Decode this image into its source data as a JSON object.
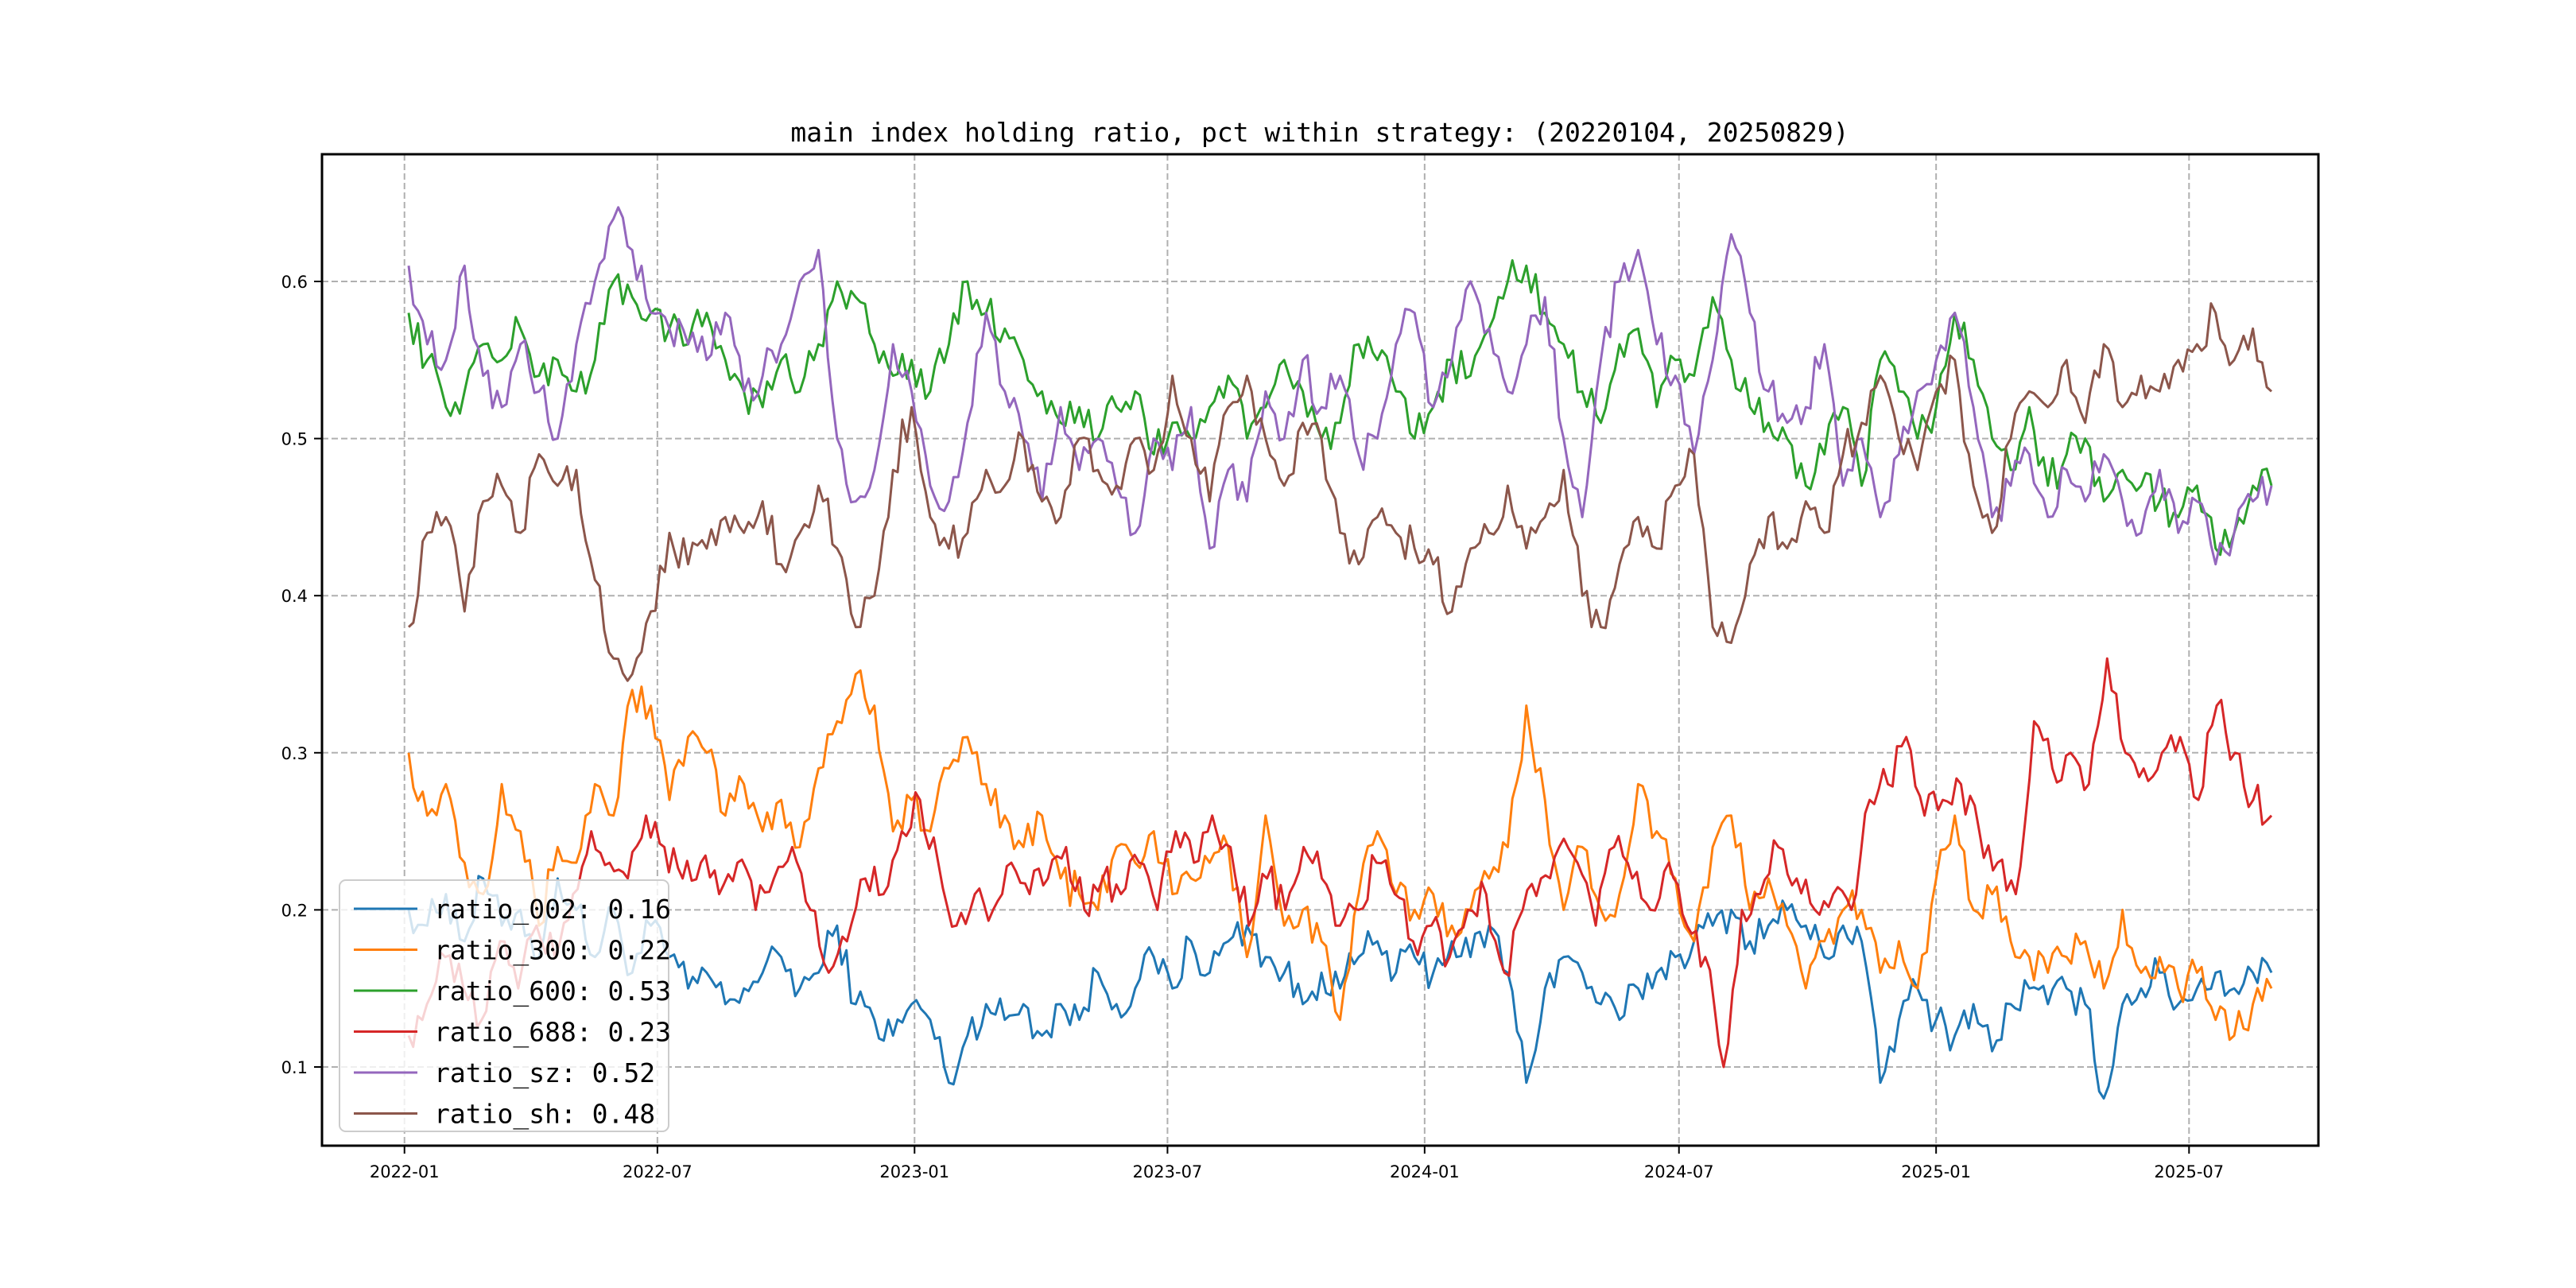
{
  "chart_data": {
    "type": "line",
    "title": "main index holding ratio, pct within strategy: (20220104, 20250829)",
    "xlabel": "",
    "ylabel": "",
    "x_start": "2022-01-04",
    "x_end": "2025-08-29",
    "xticks": [
      "2022-01",
      "2022-07",
      "2023-01",
      "2023-07",
      "2024-01",
      "2024-07",
      "2025-01",
      "2025-07"
    ],
    "yticks": [
      "0.1",
      "0.2",
      "0.3",
      "0.4",
      "0.5",
      "0.6"
    ],
    "ylim": [
      0.055,
      0.68
    ],
    "grid": true,
    "legend_position": "lower-left",
    "legend_alpha": 0.8,
    "series": [
      {
        "name": "ratio_002",
        "legend_label": "ratio_002: 0.16",
        "color": "#1f77b4",
        "values": [
          0.2,
          0.19,
          0.21,
          0.18,
          0.22,
          0.19,
          0.2,
          0.17,
          0.22,
          0.2,
          0.17,
          0.2,
          0.16,
          0.19,
          0.17,
          0.15,
          0.16,
          0.14,
          0.15,
          0.16,
          0.17,
          0.15,
          0.16,
          0.19,
          0.14,
          0.13,
          0.12,
          0.14,
          0.13,
          0.09,
          0.12,
          0.14,
          0.13,
          0.14,
          0.12,
          0.14,
          0.13,
          0.16,
          0.14,
          0.15,
          0.17,
          0.15,
          0.18,
          0.16,
          0.18,
          0.19,
          0.17,
          0.16,
          0.14,
          0.16,
          0.15,
          0.17,
          0.18,
          0.16,
          0.17,
          0.16,
          0.18,
          0.17,
          0.19,
          0.16,
          0.09,
          0.15,
          0.17,
          0.16,
          0.14,
          0.13,
          0.15,
          0.16,
          0.17,
          0.18,
          0.19,
          0.2,
          0.18,
          0.19,
          0.2,
          0.19,
          0.17,
          0.19,
          0.18,
          0.09,
          0.13,
          0.15,
          0.13,
          0.12,
          0.14,
          0.11,
          0.14,
          0.15,
          0.14,
          0.15,
          0.14,
          0.08,
          0.14,
          0.15,
          0.16,
          0.14,
          0.15,
          0.16,
          0.15,
          0.16,
          0.16
        ]
      },
      {
        "name": "ratio_300",
        "legend_label": "ratio_300: 0.22",
        "color": "#ff7f0e",
        "values": [
          0.3,
          0.26,
          0.28,
          0.23,
          0.21,
          0.28,
          0.25,
          0.19,
          0.24,
          0.23,
          0.28,
          0.26,
          0.34,
          0.33,
          0.27,
          0.31,
          0.3,
          0.26,
          0.28,
          0.25,
          0.27,
          0.24,
          0.29,
          0.32,
          0.35,
          0.33,
          0.25,
          0.27,
          0.25,
          0.29,
          0.31,
          0.28,
          0.26,
          0.24,
          0.26,
          0.22,
          0.21,
          0.2,
          0.24,
          0.23,
          0.25,
          0.21,
          0.22,
          0.23,
          0.24,
          0.17,
          0.26,
          0.19,
          0.2,
          0.18,
          0.13,
          0.21,
          0.25,
          0.21,
          0.2,
          0.21,
          0.19,
          0.2,
          0.22,
          0.24,
          0.33,
          0.27,
          0.2,
          0.24,
          0.2,
          0.21,
          0.28,
          0.25,
          0.22,
          0.18,
          0.24,
          0.26,
          0.2,
          0.22,
          0.19,
          0.15,
          0.18,
          0.2,
          0.2,
          0.16,
          0.18,
          0.15,
          0.22,
          0.26,
          0.2,
          0.21,
          0.18,
          0.17,
          0.16,
          0.17,
          0.18,
          0.15,
          0.2,
          0.16,
          0.17,
          0.15,
          0.16,
          0.13,
          0.12,
          0.14,
          0.15
        ]
      },
      {
        "name": "ratio_600",
        "legend_label": "ratio_600: 0.53",
        "color": "#2ca02c",
        "values": [
          0.58,
          0.55,
          0.52,
          0.53,
          0.56,
          0.55,
          0.57,
          0.54,
          0.55,
          0.53,
          0.55,
          0.6,
          0.59,
          0.58,
          0.57,
          0.56,
          0.58,
          0.55,
          0.53,
          0.52,
          0.55,
          0.53,
          0.56,
          0.6,
          0.59,
          0.56,
          0.54,
          0.55,
          0.53,
          0.56,
          0.6,
          0.58,
          0.57,
          0.55,
          0.53,
          0.51,
          0.52,
          0.5,
          0.52,
          0.53,
          0.49,
          0.51,
          0.5,
          0.52,
          0.54,
          0.5,
          0.52,
          0.55,
          0.53,
          0.5,
          0.51,
          0.56,
          0.55,
          0.53,
          0.5,
          0.52,
          0.55,
          0.54,
          0.57,
          0.6,
          0.61,
          0.58,
          0.56,
          0.53,
          0.51,
          0.56,
          0.57,
          0.52,
          0.55,
          0.54,
          0.59,
          0.55,
          0.52,
          0.51,
          0.5,
          0.47,
          0.49,
          0.52,
          0.47,
          0.55,
          0.53,
          0.5,
          0.52,
          0.58,
          0.55,
          0.5,
          0.48,
          0.52,
          0.47,
          0.49,
          0.5,
          0.46,
          0.48,
          0.47,
          0.46,
          0.45,
          0.47,
          0.43,
          0.44,
          0.47,
          0.47
        ]
      },
      {
        "name": "ratio_688",
        "legend_label": "ratio_688: 0.23",
        "color": "#d62728",
        "values": [
          0.12,
          0.14,
          0.17,
          0.15,
          0.13,
          0.18,
          0.15,
          0.19,
          0.17,
          0.21,
          0.25,
          0.23,
          0.22,
          0.26,
          0.24,
          0.22,
          0.23,
          0.21,
          0.23,
          0.2,
          0.22,
          0.24,
          0.2,
          0.16,
          0.18,
          0.22,
          0.21,
          0.25,
          0.27,
          0.23,
          0.19,
          0.21,
          0.2,
          0.23,
          0.21,
          0.22,
          0.24,
          0.2,
          0.22,
          0.21,
          0.23,
          0.2,
          0.25,
          0.23,
          0.26,
          0.24,
          0.19,
          0.22,
          0.2,
          0.24,
          0.22,
          0.19,
          0.2,
          0.23,
          0.21,
          0.18,
          0.19,
          0.17,
          0.2,
          0.21,
          0.16,
          0.2,
          0.22,
          0.24,
          0.23,
          0.19,
          0.24,
          0.22,
          0.2,
          0.23,
          0.19,
          0.17,
          0.1,
          0.2,
          0.21,
          0.24,
          0.22,
          0.2,
          0.21,
          0.2,
          0.27,
          0.28,
          0.31,
          0.26,
          0.27,
          0.28,
          0.25,
          0.23,
          0.21,
          0.32,
          0.29,
          0.3,
          0.28,
          0.36,
          0.3,
          0.29,
          0.3,
          0.31,
          0.27,
          0.33,
          0.3,
          0.27,
          0.26
        ]
      },
      {
        "name": "ratio_sz",
        "legend_label": "ratio_sz: 0.52",
        "color": "#9467bd",
        "values": [
          0.61,
          0.56,
          0.55,
          0.61,
          0.54,
          0.52,
          0.56,
          0.53,
          0.5,
          0.56,
          0.6,
          0.64,
          0.62,
          0.58,
          0.57,
          0.56,
          0.55,
          0.58,
          0.53,
          0.54,
          0.56,
          0.6,
          0.62,
          0.5,
          0.46,
          0.48,
          0.56,
          0.53,
          0.47,
          0.46,
          0.51,
          0.58,
          0.53,
          0.5,
          0.46,
          0.52,
          0.48,
          0.5,
          0.47,
          0.44,
          0.5,
          0.48,
          0.52,
          0.43,
          0.48,
          0.46,
          0.53,
          0.5,
          0.55,
          0.52,
          0.54,
          0.49,
          0.5,
          0.56,
          0.58,
          0.52,
          0.55,
          0.6,
          0.57,
          0.53,
          0.56,
          0.59,
          0.5,
          0.45,
          0.55,
          0.6,
          0.62,
          0.56,
          0.54,
          0.49,
          0.55,
          0.63,
          0.58,
          0.53,
          0.51,
          0.52,
          0.56,
          0.47,
          0.5,
          0.45,
          0.49,
          0.53,
          0.55,
          0.58,
          0.52,
          0.45,
          0.47,
          0.49,
          0.45,
          0.48,
          0.46,
          0.49,
          0.46,
          0.44,
          0.48,
          0.44,
          0.46,
          0.42,
          0.44,
          0.46,
          0.47
        ]
      },
      {
        "name": "ratio_sh",
        "legend_label": "ratio_sh: 0.48",
        "color": "#8c564b",
        "values": [
          0.38,
          0.44,
          0.45,
          0.39,
          0.46,
          0.47,
          0.44,
          0.49,
          0.47,
          0.48,
          0.41,
          0.36,
          0.35,
          0.39,
          0.44,
          0.42,
          0.43,
          0.45,
          0.44,
          0.46,
          0.42,
          0.44,
          0.47,
          0.43,
          0.38,
          0.4,
          0.48,
          0.52,
          0.45,
          0.43,
          0.44,
          0.48,
          0.47,
          0.5,
          0.46,
          0.45,
          0.5,
          0.48,
          0.47,
          0.5,
          0.48,
          0.54,
          0.5,
          0.46,
          0.52,
          0.54,
          0.5,
          0.47,
          0.51,
          0.5,
          0.44,
          0.42,
          0.45,
          0.44,
          0.43,
          0.42,
          0.39,
          0.43,
          0.44,
          0.47,
          0.43,
          0.45,
          0.48,
          0.4,
          0.38,
          0.42,
          0.45,
          0.43,
          0.47,
          0.49,
          0.38,
          0.37,
          0.42,
          0.45,
          0.43,
          0.46,
          0.44,
          0.49,
          0.51,
          0.54,
          0.5,
          0.48,
          0.53,
          0.55,
          0.47,
          0.44,
          0.5,
          0.53,
          0.52,
          0.55,
          0.51,
          0.56,
          0.52,
          0.54,
          0.53,
          0.55,
          0.56,
          0.58,
          0.55,
          0.57,
          0.53
        ]
      }
    ]
  }
}
